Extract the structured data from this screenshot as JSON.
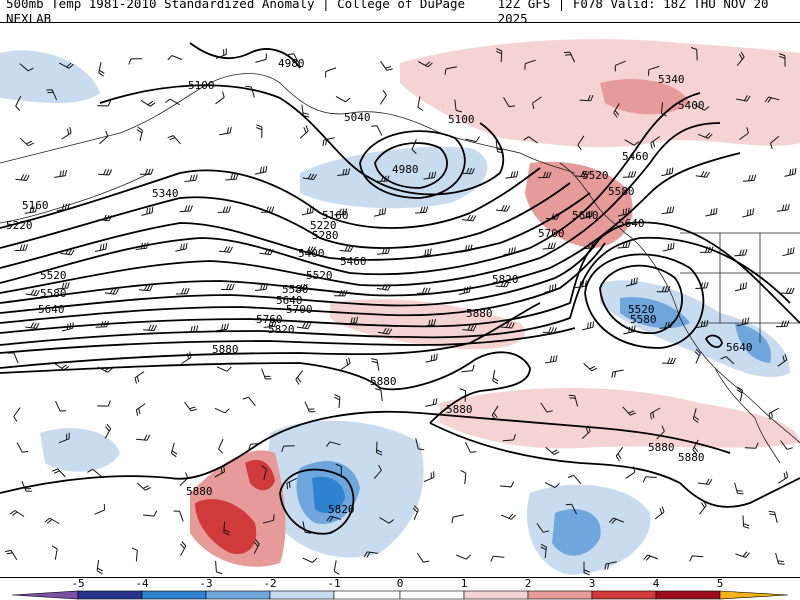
{
  "header": {
    "left_title": "500mb Temp 1981-2010 Standardized Anomaly | College of DuPage NEXLAB",
    "right_title": "12Z GFS | F078 Valid: 18Z THU NOV 20 2025"
  },
  "contour_labels": [
    "4980",
    "5040",
    "5100",
    "5160",
    "5220",
    "5280",
    "5340",
    "5400",
    "5460",
    "5520",
    "5580",
    "5640",
    "5700",
    "5760",
    "5820",
    "5880"
  ],
  "colorbar": {
    "ticks": [
      "-5",
      "-4",
      "-3",
      "-2",
      "-1",
      "0",
      "1",
      "2",
      "3",
      "4",
      "5"
    ],
    "colors": {
      "neg5": "#7b4fa3",
      "neg4": "#27338a",
      "neg3": "#2f82cf",
      "neg2": "#6fa6dd",
      "neg1": "#c9dcef",
      "zero": "#ffffff",
      "pos1": "#f6d3d3",
      "pos2": "#e69a9a",
      "pos3": "#d13a3a",
      "pos4": "#9b0f1c",
      "pos5": "#f2b21a"
    }
  }
}
